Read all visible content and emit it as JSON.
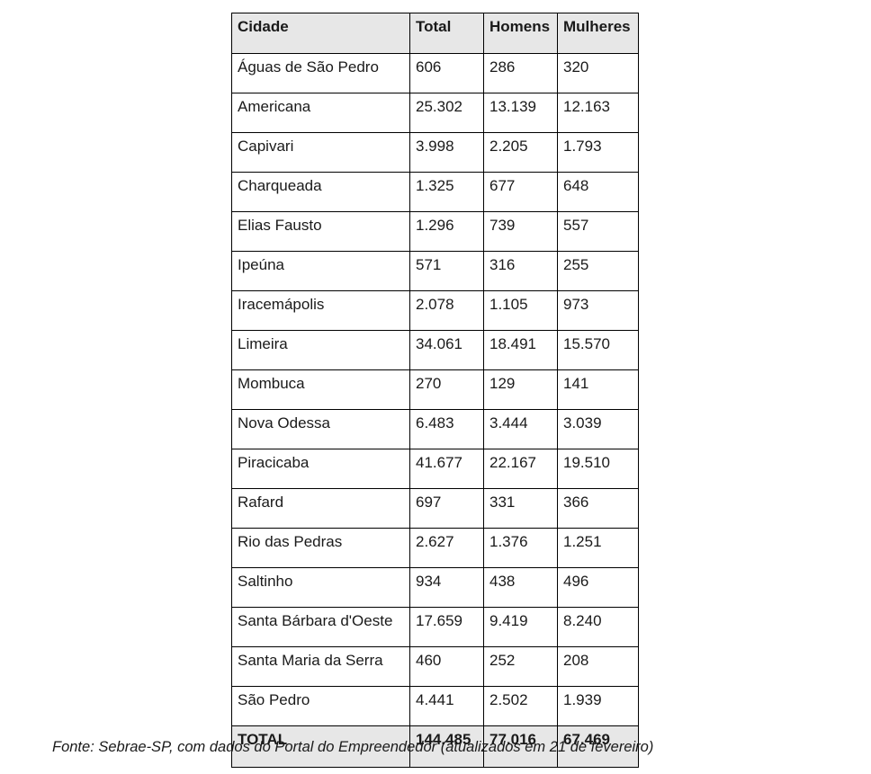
{
  "table": {
    "columns": [
      "Cidade",
      "Total",
      "Homens",
      "Mulheres"
    ],
    "rows": [
      [
        "Águas de São Pedro",
        "606",
        "286",
        "320"
      ],
      [
        "Americana",
        "25.302",
        "13.139",
        "12.163"
      ],
      [
        "Capivari",
        "3.998",
        "2.205",
        "1.793"
      ],
      [
        "Charqueada",
        "1.325",
        "677",
        "648"
      ],
      [
        "Elias Fausto",
        "1.296",
        "739",
        "557"
      ],
      [
        "Ipeúna",
        "571",
        "316",
        "255"
      ],
      [
        "Iracemápolis",
        "2.078",
        "1.105",
        "973"
      ],
      [
        "Limeira",
        "34.061",
        "18.491",
        "15.570"
      ],
      [
        "Mombuca",
        "270",
        "129",
        "141"
      ],
      [
        "Nova Odessa",
        "6.483",
        "3.444",
        "3.039"
      ],
      [
        "Piracicaba",
        "41.677",
        "22.167",
        "19.510"
      ],
      [
        "Rafard",
        "697",
        "331",
        "366"
      ],
      [
        "Rio das Pedras",
        "2.627",
        "1.376",
        "1.251"
      ],
      [
        "Saltinho",
        "934",
        "438",
        "496"
      ],
      [
        "Santa Bárbara d'Oeste",
        "17.659",
        "9.419",
        "8.240"
      ],
      [
        "Santa Maria da Serra",
        "460",
        "252",
        "208"
      ],
      [
        "São Pedro",
        "4.441",
        "2.502",
        "1.939"
      ]
    ],
    "total_row": [
      "TOTAL",
      "144.485",
      "77.016",
      "67.469"
    ]
  },
  "footer": {
    "source_note": "Fonte: Sebrae-SP, com dados do Portal do Empreendedor (atualizados em 21 de fevereiro)"
  },
  "colors": {
    "header_bg": "#e7e7e7",
    "border": "#000000",
    "text": "#1a1a1a"
  }
}
